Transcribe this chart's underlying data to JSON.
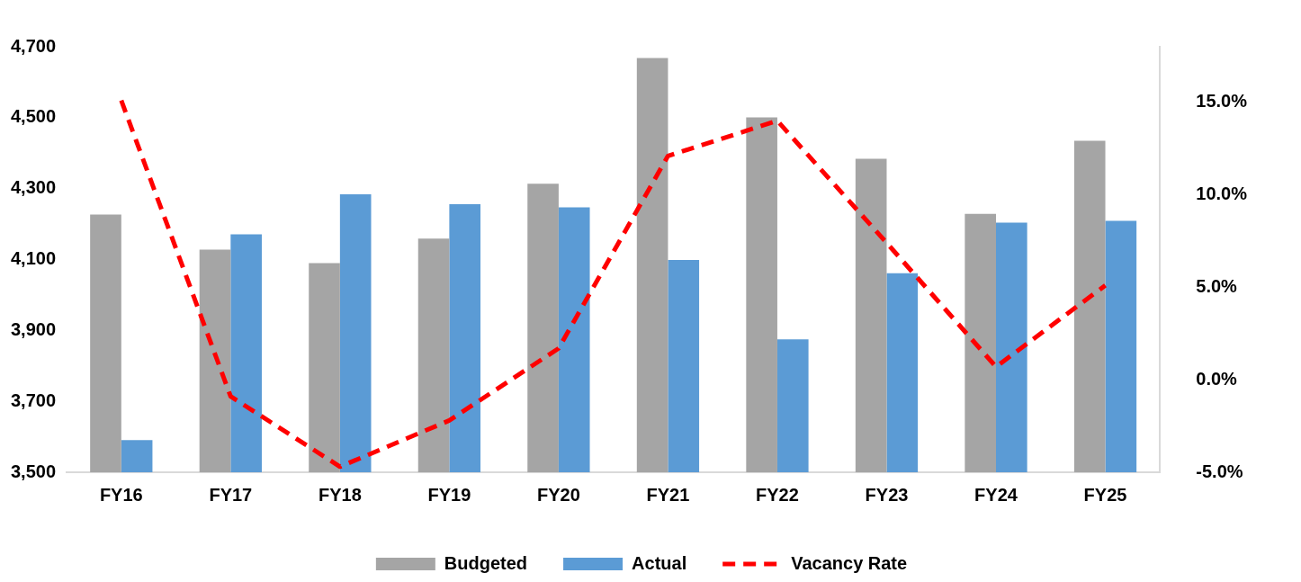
{
  "chart_data": {
    "type": "bar",
    "categories": [
      "FY16",
      "FY17",
      "FY18",
      "FY19",
      "FY20",
      "FY21",
      "FY22",
      "FY23",
      "FY24",
      "FY25"
    ],
    "series": [
      {
        "name": "Budgeted",
        "color": "#a5a5a5",
        "values": [
          4227,
          4128,
          4090,
          4159,
          4314,
          4668,
          4501,
          4384,
          4229,
          4435
        ]
      },
      {
        "name": "Actual",
        "color": "#5b9bd5",
        "values": [
          3591,
          4171,
          4284,
          4256,
          4247,
          4099,
          3875,
          4061,
          4204,
          4209
        ]
      },
      {
        "name": "Vacancy Rate",
        "type": "line",
        "axis": "y2",
        "color": "#ff0000",
        "line_style": "dashed",
        "values": [
          15.1,
          -0.9,
          -4.7,
          -2.2,
          1.7,
          12.1,
          14.0,
          7.4,
          0.7,
          5.1
        ]
      }
    ],
    "ylim": [
      3500,
      4700
    ],
    "yticks": [
      {
        "value": 3500,
        "label": "3,500"
      },
      {
        "value": 3700,
        "label": "3,700"
      },
      {
        "value": 3900,
        "label": "3,900"
      },
      {
        "value": 4100,
        "label": "4,100"
      },
      {
        "value": 4300,
        "label": "4,300"
      },
      {
        "value": 4500,
        "label": "4,500"
      },
      {
        "value": 4700,
        "label": "4,700"
      }
    ],
    "y2lim": [
      -5,
      18
    ],
    "y2ticks": [
      {
        "value": -5,
        "label": "-5.0%"
      },
      {
        "value": 0,
        "label": "0.0%"
      },
      {
        "value": 5,
        "label": "5.0%"
      },
      {
        "value": 10,
        "label": "10.0%"
      },
      {
        "value": 15,
        "label": "15.0%"
      }
    ],
    "grid": false,
    "legend": "bottom",
    "marker": "none"
  }
}
